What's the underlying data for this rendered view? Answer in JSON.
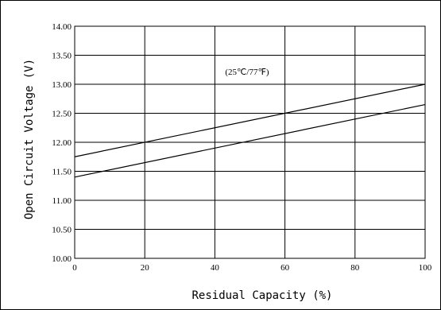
{
  "chart_data": {
    "type": "line",
    "xlabel": "Residual Capacity (%)",
    "ylabel": "Open Circuit Voltage (V)",
    "annotation": "(25℃/77℉)",
    "xlim": [
      0,
      100
    ],
    "ylim": [
      10.0,
      14.0
    ],
    "x_ticks": [
      "0",
      "20",
      "40",
      "60",
      "80",
      "100"
    ],
    "y_ticks": [
      "10.00",
      "10.50",
      "11.00",
      "11.50",
      "12.00",
      "12.50",
      "13.00",
      "13.50",
      "14.00"
    ],
    "grid": true,
    "series": [
      {
        "x": [
          0,
          100
        ],
        "y": [
          11.75,
          13.0
        ]
      },
      {
        "x": [
          0,
          100
        ],
        "y": [
          11.4,
          12.65
        ]
      }
    ]
  }
}
